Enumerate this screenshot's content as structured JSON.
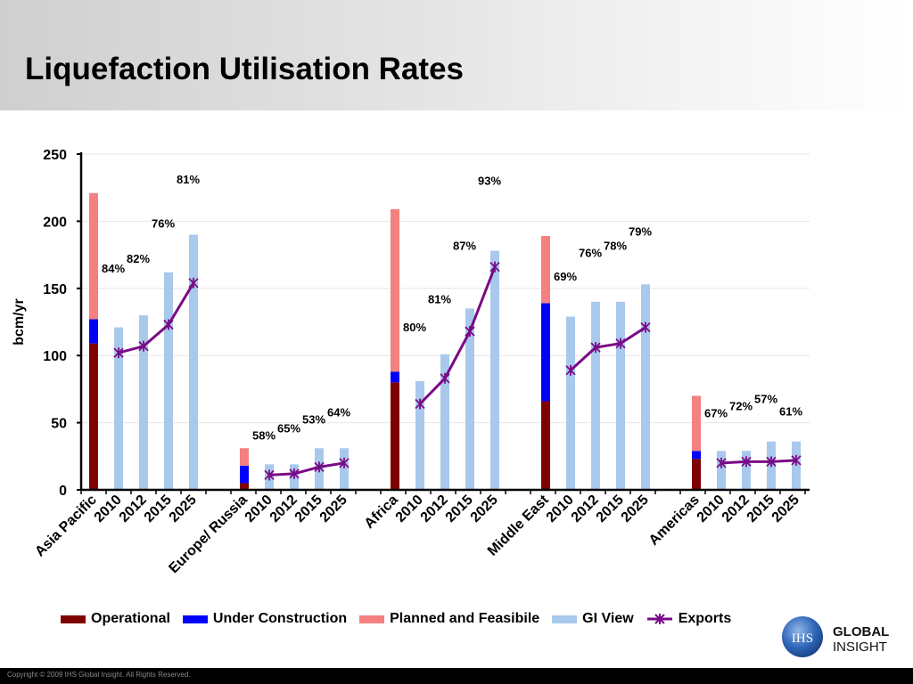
{
  "slide": {
    "title": "Liquefaction Utilisation Rates",
    "footer": "Copyright © 2009 IHS Global Insight. All Rights Reserved.",
    "logo": {
      "mark": "IHS",
      "line1": "GLOBAL",
      "line2": "INSIGHT"
    }
  },
  "colors": {
    "operational": "#7f0000",
    "under_construction": "#0000ff",
    "planned": "#f48080",
    "gi_view": "#a9c9ec",
    "exports": "#7a0a86"
  },
  "chart_data": {
    "type": "bar",
    "ylabel": "bcm/yr",
    "ylim": [
      0,
      250
    ],
    "yticks": [
      0,
      50,
      100,
      150,
      200,
      250
    ],
    "grid": true,
    "legend_position": "bottom",
    "legend": [
      "Operational",
      "Under Construction",
      "Planned and Feasibile",
      "GI View",
      "Exports"
    ],
    "regions": [
      {
        "name": "Asia Pacific",
        "operational": 109,
        "under_construction": 18,
        "planned": 94,
        "years": [
          "2010",
          "2012",
          "2015",
          "2025"
        ],
        "gi_view": [
          121,
          130,
          162,
          190
        ],
        "exports": [
          102,
          107,
          123,
          154
        ],
        "utilisation": [
          "84%",
          "82%",
          "76%",
          "81%"
        ]
      },
      {
        "name": "Europe/ Russia",
        "operational": 5,
        "under_construction": 13,
        "planned": 13,
        "years": [
          "2010",
          "2012",
          "2015",
          "2025"
        ],
        "gi_view": [
          19,
          19,
          31,
          31
        ],
        "exports": [
          11,
          12,
          17,
          20
        ],
        "utilisation": [
          "58%",
          "65%",
          "53%",
          "64%"
        ]
      },
      {
        "name": "Africa",
        "operational": 80,
        "under_construction": 8,
        "planned": 121,
        "years": [
          "2010",
          "2012",
          "2015",
          "2025"
        ],
        "gi_view": [
          81,
          101,
          135,
          178
        ],
        "exports": [
          64,
          83,
          118,
          166
        ],
        "utilisation": [
          "80%",
          "81%",
          "87%",
          "93%"
        ]
      },
      {
        "name": "Middle East",
        "operational": 66,
        "under_construction": 73,
        "planned": 50,
        "years": [
          "2010",
          "2012",
          "2015",
          "2025"
        ],
        "gi_view": [
          129,
          140,
          140,
          153
        ],
        "exports": [
          89,
          106,
          109,
          121
        ],
        "utilisation": [
          "69%",
          "76%",
          "78%",
          "79%"
        ]
      },
      {
        "name": "Americas",
        "operational": 23,
        "under_construction": 6,
        "planned": 41,
        "years": [
          "2010",
          "2012",
          "2015",
          "2025"
        ],
        "gi_view": [
          29,
          29,
          36,
          36
        ],
        "exports": [
          20,
          21,
          21,
          22
        ],
        "utilisation": [
          "67%",
          "72%",
          "57%",
          "61%"
        ]
      }
    ]
  }
}
